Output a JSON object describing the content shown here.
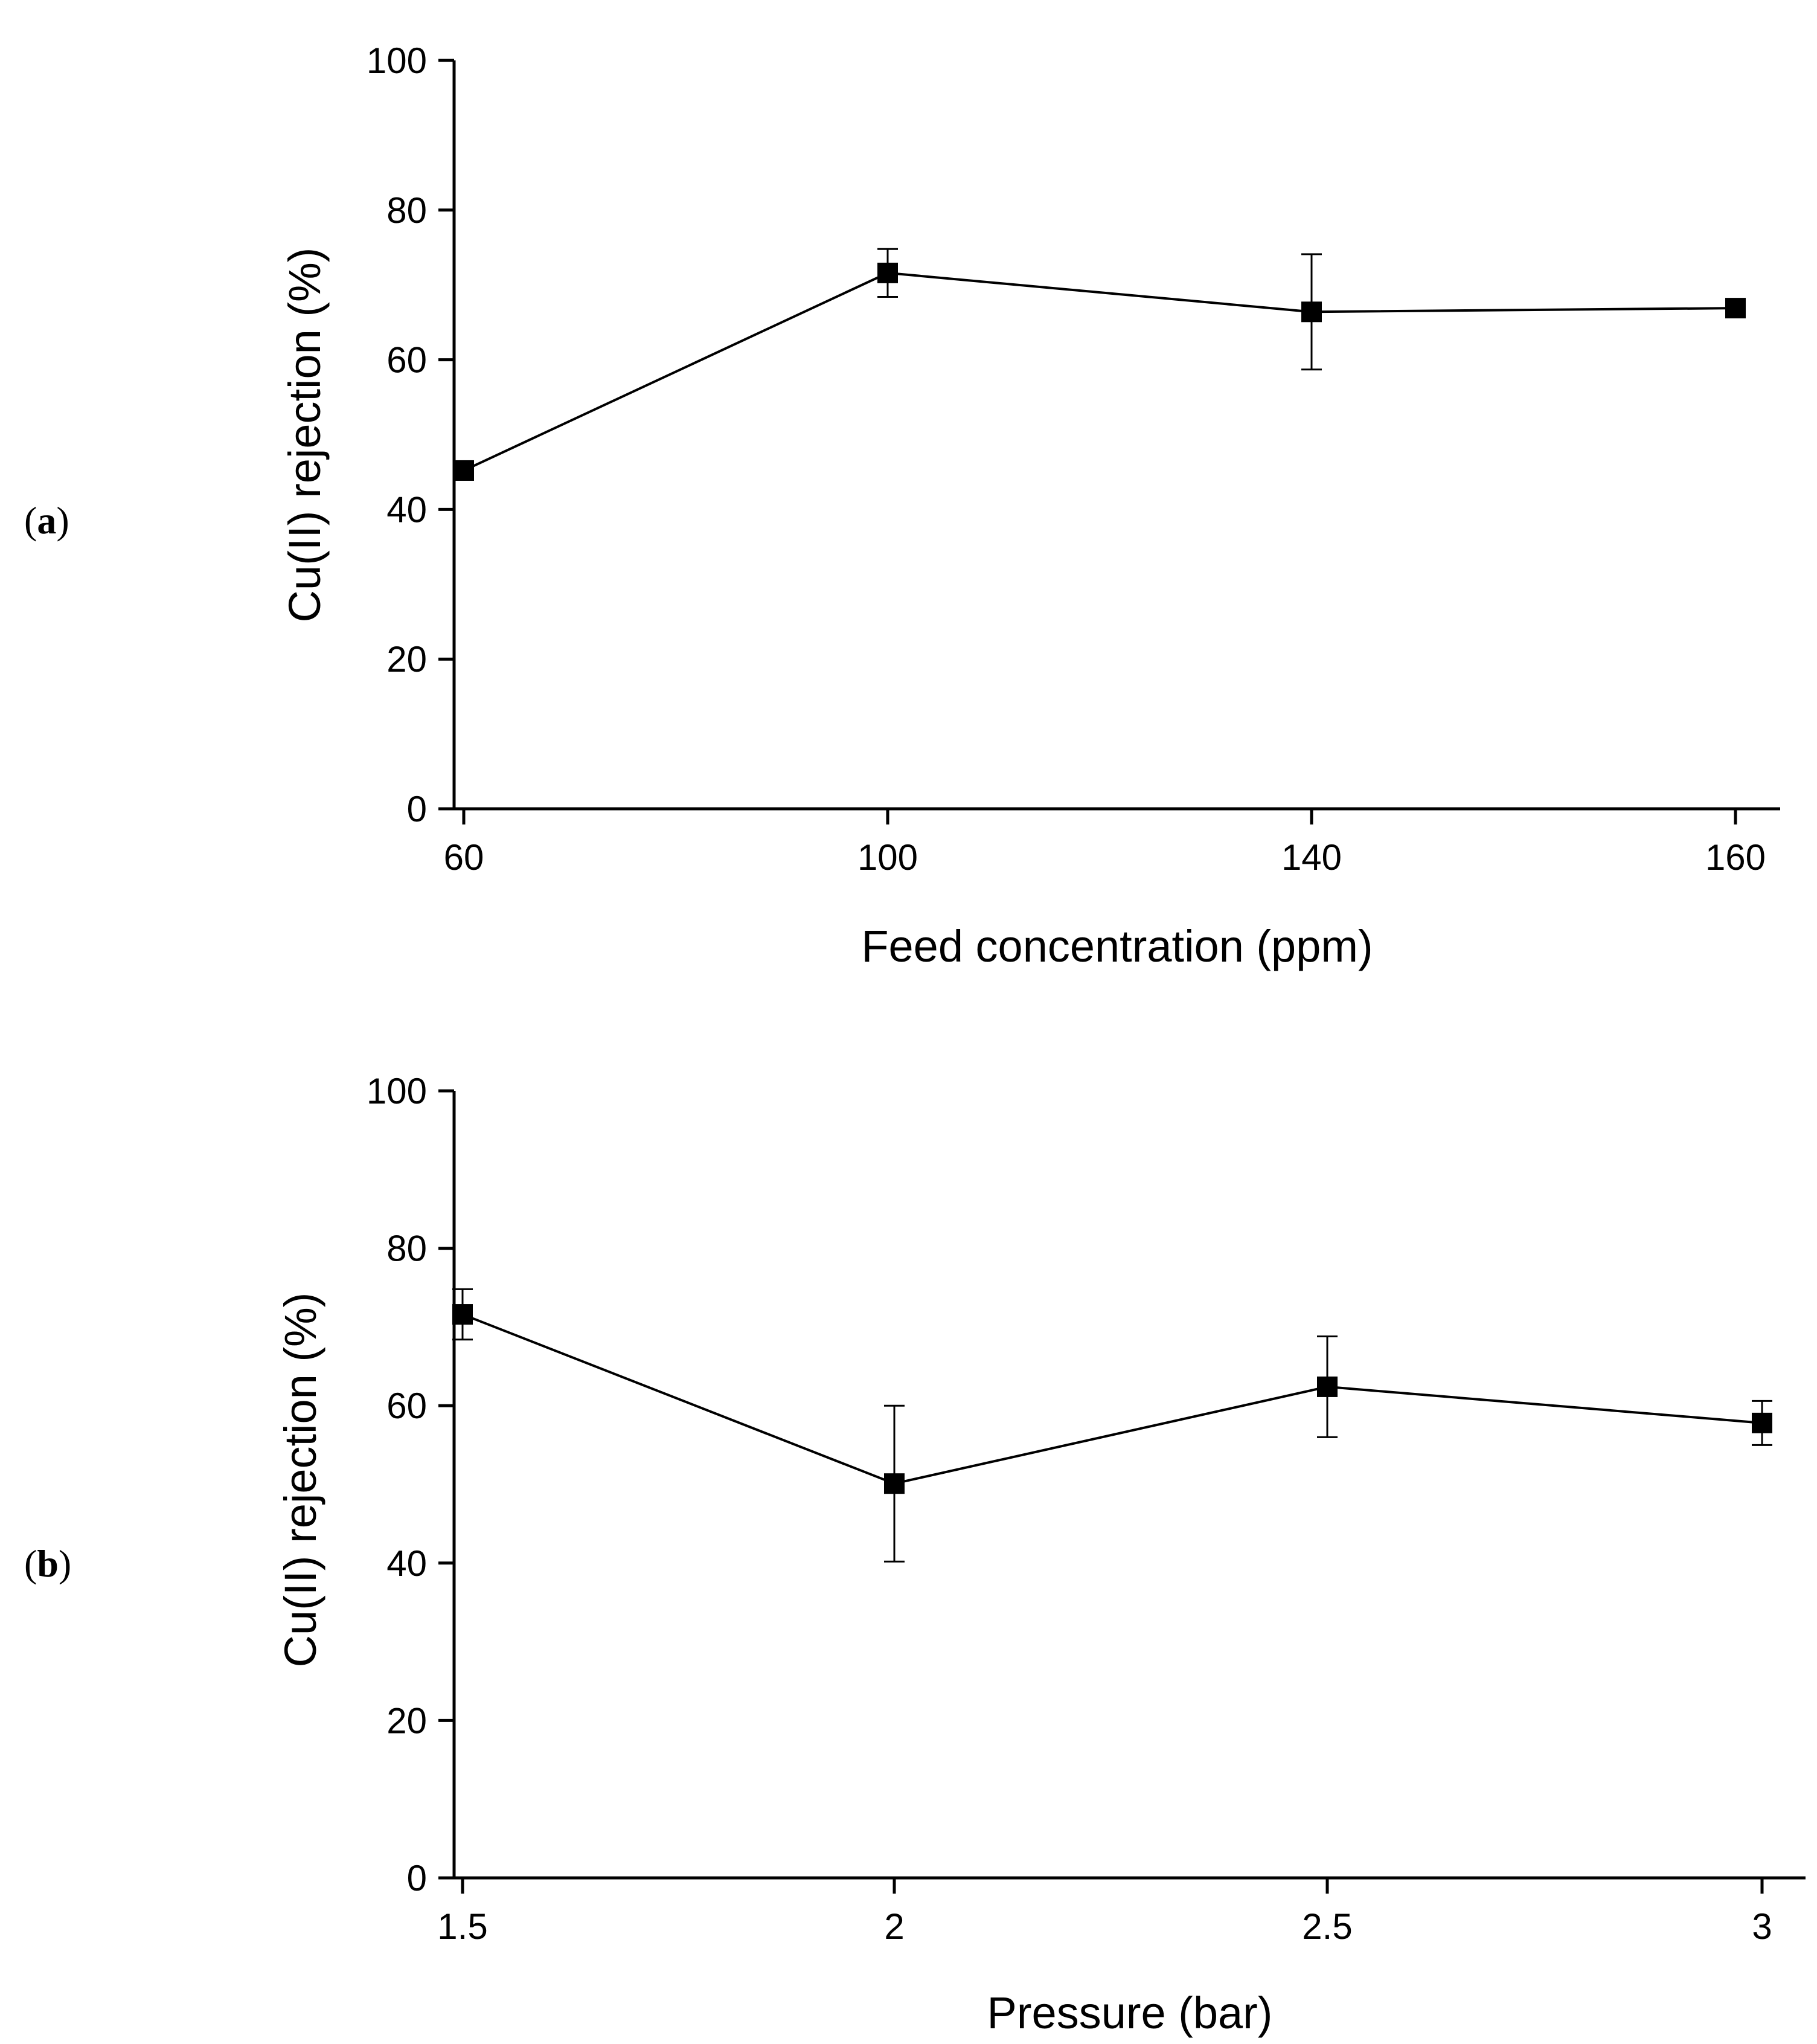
{
  "chart_data": [
    {
      "panel_label": "(a)",
      "panel_label_parts": {
        "open": "(",
        "letter": "a",
        "close": ")"
      },
      "type": "line",
      "title": "",
      "xlabel": "Feed concentration (ppm)",
      "ylabel": "Cu(II) rejection (%)",
      "x_tick_labels": [
        "60",
        "100",
        "140",
        "160"
      ],
      "y_ticks": [
        0,
        20,
        40,
        60,
        80,
        100
      ],
      "y_tick_labels": [
        "0",
        "20",
        "40",
        "60",
        "80",
        "100"
      ],
      "ylim": [
        0,
        100
      ],
      "grid": false,
      "series": [
        {
          "name": "Cu(II) rejection",
          "marker": "square",
          "color": "#000000",
          "points": [
            {
              "x": "60",
              "y": 45.2,
              "err": 0
            },
            {
              "x": "100",
              "y": 71.6,
              "err": 3.2
            },
            {
              "x": "140",
              "y": 66.4,
              "err": 7.7
            },
            {
              "x": "160",
              "y": 66.9,
              "err": 0
            }
          ]
        }
      ]
    },
    {
      "panel_label": "(b)",
      "panel_label_parts": {
        "open": "(",
        "letter": "b",
        "close": ")"
      },
      "type": "line",
      "title": "",
      "xlabel": "Pressure (bar)",
      "ylabel": "Cu(II) rejection (%)",
      "x_tick_labels": [
        "1.5",
        "2",
        "2.5",
        "3"
      ],
      "y_ticks": [
        0,
        20,
        40,
        60,
        80,
        100
      ],
      "y_tick_labels": [
        "0",
        "20",
        "40",
        "60",
        "80",
        "100"
      ],
      "ylim": [
        0,
        100
      ],
      "grid": false,
      "series": [
        {
          "name": "Cu(II) rejection",
          "marker": "square",
          "color": "#000000",
          "points": [
            {
              "x": "1.5",
              "y": 71.6,
              "err": 3.2
            },
            {
              "x": "2",
              "y": 50.1,
              "err": 9.9
            },
            {
              "x": "2.5",
              "y": 62.4,
              "err": 6.4
            },
            {
              "x": "3",
              "y": 57.8,
              "err": 2.8
            }
          ]
        }
      ]
    }
  ]
}
